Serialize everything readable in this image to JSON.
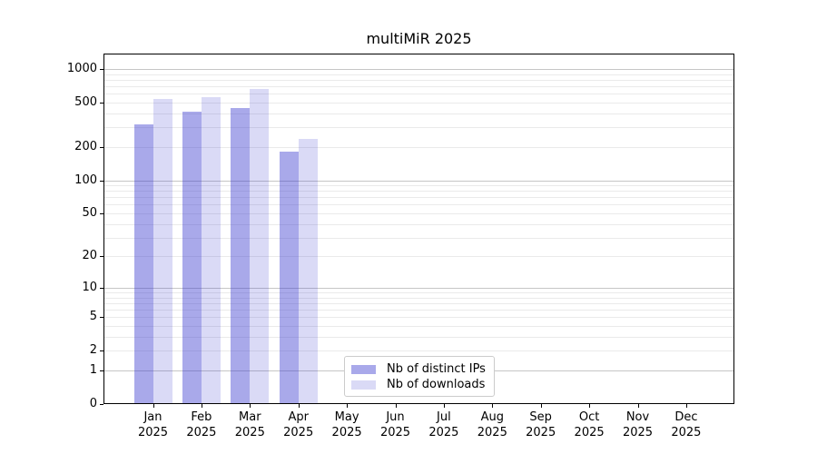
{
  "chart_data": {
    "type": "bar",
    "title": "multiMiR 2025",
    "categories": [
      "Jan",
      "Feb",
      "Mar",
      "Apr",
      "May",
      "Jun",
      "Jul",
      "Aug",
      "Sep",
      "Oct",
      "Nov",
      "Dec"
    ],
    "category_year": "2025",
    "series": [
      {
        "name": "Nb of distinct IPs",
        "color": "rgba(51,51,204,0.42)",
        "values": [
          320,
          415,
          445,
          180,
          0,
          0,
          0,
          0,
          0,
          0,
          0,
          0
        ]
      },
      {
        "name": "Nb of downloads",
        "color": "rgba(51,51,204,0.18)",
        "values": [
          535,
          560,
          665,
          235,
          0,
          0,
          0,
          0,
          0,
          0,
          0,
          0
        ]
      }
    ],
    "y_scale": "log10(v+1)",
    "y_tick_values": [
      0,
      1,
      2,
      5,
      10,
      20,
      50,
      100,
      200,
      500,
      1000
    ],
    "ylim": [
      0,
      1375
    ],
    "grid": true,
    "legend_position": "lower center (inside plot)",
    "colors": {
      "bar_distinct_ips": "rgba(51,51,204,0.42)",
      "bar_downloads": "rgba(51,51,204,0.18)",
      "grid_major": "#c6c6c6",
      "grid_minor": "#eaeaea",
      "axis": "#000000",
      "legend_border": "#cccccc",
      "background": "#ffffff"
    }
  }
}
